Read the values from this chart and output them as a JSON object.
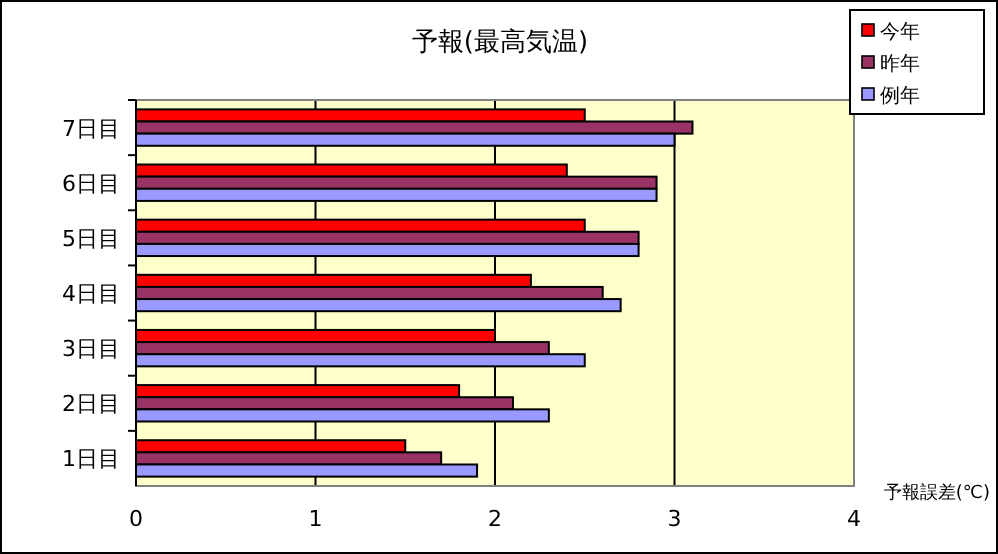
{
  "chart_data": {
    "type": "bar",
    "orientation": "horizontal",
    "title": "予報(最高気温)",
    "xlabel": "予報誤差(℃)",
    "categories": [
      "7日目",
      "6日目",
      "5日目",
      "4日目",
      "3日目",
      "2日目",
      "1日目"
    ],
    "series": [
      {
        "name": "今年",
        "color": "#ff0000",
        "values": [
          2.5,
          2.4,
          2.5,
          2.2,
          2.0,
          1.8,
          1.5
        ]
      },
      {
        "name": "昨年",
        "color": "#993366",
        "values": [
          3.1,
          2.9,
          2.8,
          2.6,
          2.3,
          2.1,
          1.7
        ]
      },
      {
        "name": "例年",
        "color": "#9999ff",
        "values": [
          3.0,
          2.9,
          2.8,
          2.7,
          2.5,
          2.3,
          1.9
        ]
      }
    ],
    "xlim": [
      0,
      4
    ],
    "xticks": [
      0,
      1,
      2,
      3,
      4
    ],
    "grid": "x",
    "legend": "top right"
  }
}
